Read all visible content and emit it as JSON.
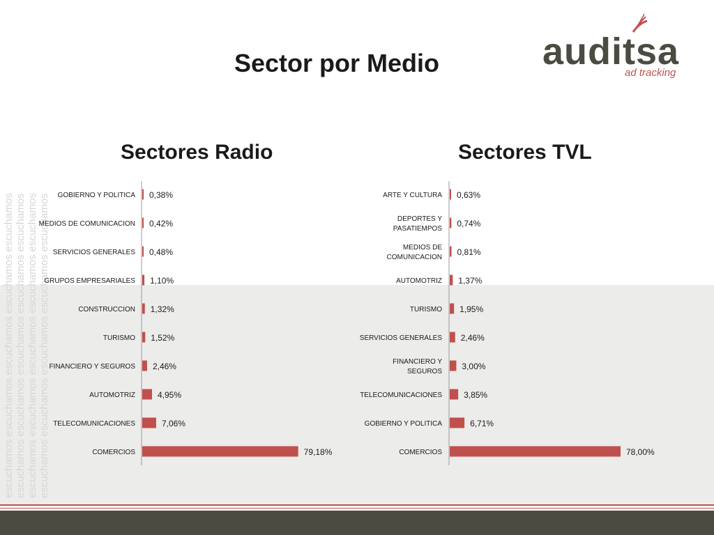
{
  "slide": {
    "title": "Sector por Medio",
    "watermark_word": "escuchamos"
  },
  "logo": {
    "name": "auditsa",
    "tagline": "ad tracking"
  },
  "colors": {
    "bar": "#c0504d",
    "footer": "#4b4b41",
    "accent": "#c0504d"
  },
  "chart_data": [
    {
      "type": "bar",
      "orientation": "horizontal",
      "title": "Sectores Radio",
      "unit": "%",
      "categories": [
        "GOBIERNO Y POLITICA",
        "MEDIOS DE COMUNICACION",
        "SERVICIOS GENERALES",
        "GRUPOS EMPRESARIALES",
        "CONSTRUCCION",
        "TURISMO",
        "FINANCIERO Y SEGUROS",
        "AUTOMOTRIZ",
        "TELECOMUNICACIONES",
        "COMERCIOS"
      ],
      "values": [
        0.38,
        0.42,
        0.48,
        1.1,
        1.32,
        1.52,
        2.46,
        4.95,
        7.06,
        79.18
      ],
      "labels": [
        "0,38%",
        "0,42%",
        "0,48%",
        "1,10%",
        "1,32%",
        "1,52%",
        "2,46%",
        "4,95%",
        "7,06%",
        "79,18%"
      ],
      "xlim": [
        0,
        80
      ]
    },
    {
      "type": "bar",
      "orientation": "horizontal",
      "title": "Sectores TVL",
      "unit": "%",
      "categories": [
        [
          "ARTE Y CULTURA"
        ],
        [
          "DEPORTES Y",
          "PASATIEMPOS"
        ],
        [
          "MEDIOS DE",
          "COMUNICACION"
        ],
        [
          "AUTOMOTRIZ"
        ],
        [
          "TURISMO"
        ],
        [
          "SERVICIOS GENERALES"
        ],
        [
          "FINANCIERO Y",
          "SEGUROS"
        ],
        [
          "TELECOMUNICACIONES"
        ],
        [
          "GOBIERNO Y POLITICA"
        ],
        [
          "COMERCIOS"
        ]
      ],
      "values": [
        0.63,
        0.74,
        0.81,
        1.37,
        1.95,
        2.46,
        3.0,
        3.85,
        6.71,
        78.0
      ],
      "labels": [
        "0,63%",
        "0,74%",
        "0,81%",
        "1,37%",
        "1,95%",
        "2,46%",
        "3,00%",
        "3,85%",
        "6,71%",
        "78,00%"
      ],
      "xlim": [
        0,
        78
      ]
    }
  ]
}
